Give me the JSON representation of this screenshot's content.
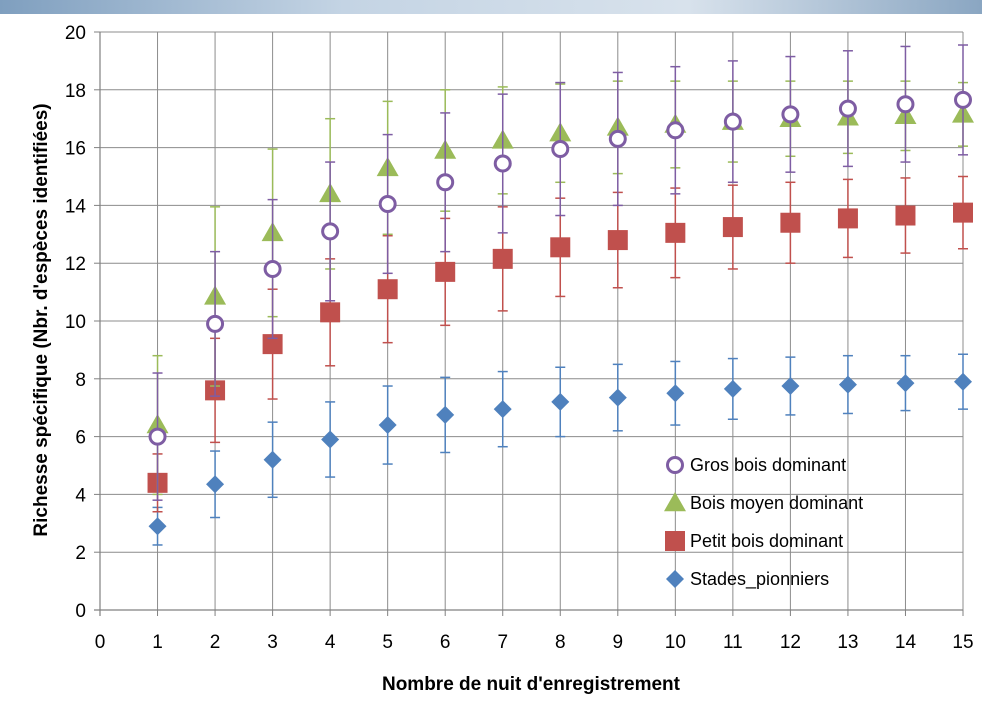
{
  "chart_data": {
    "type": "scatter",
    "title": "",
    "xlabel": "Nombre de nuit d'enregistrement",
    "ylabel": "Richesse spécifique (Nbr. d'espèces identifiées)",
    "xlim": [
      0,
      15
    ],
    "ylim": [
      0,
      20
    ],
    "x_ticks": [
      0,
      1,
      2,
      3,
      4,
      5,
      6,
      7,
      8,
      9,
      10,
      11,
      12,
      13,
      14,
      15
    ],
    "y_ticks": [
      0,
      2,
      4,
      6,
      8,
      10,
      12,
      14,
      16,
      18,
      20
    ],
    "grid": true,
    "legend_position": "bottom-right",
    "x": [
      1,
      2,
      3,
      4,
      5,
      6,
      7,
      8,
      9,
      10,
      11,
      12,
      13,
      14,
      15
    ],
    "series": [
      {
        "name": "Gros bois dominant",
        "marker": "open-circle",
        "color": "#7E5DA3",
        "values": [
          6.0,
          9.9,
          11.8,
          13.1,
          14.05,
          14.8,
          15.45,
          15.95,
          16.3,
          16.6,
          16.9,
          17.15,
          17.35,
          17.5,
          17.65
        ],
        "err": [
          2.2,
          2.5,
          2.4,
          2.4,
          2.4,
          2.4,
          2.4,
          2.3,
          2.3,
          2.2,
          2.1,
          2.0,
          2.0,
          2.0,
          1.9
        ]
      },
      {
        "name": "Bois moyen dominant",
        "marker": "triangle",
        "color": "#9BBB59",
        "values": [
          6.4,
          10.85,
          13.05,
          14.4,
          15.3,
          15.9,
          16.25,
          16.5,
          16.7,
          16.8,
          16.9,
          17.0,
          17.05,
          17.1,
          17.15
        ],
        "err": [
          2.4,
          3.1,
          2.9,
          2.6,
          2.3,
          2.1,
          1.85,
          1.7,
          1.6,
          1.5,
          1.4,
          1.3,
          1.25,
          1.2,
          1.1
        ]
      },
      {
        "name": "Petit bois dominant",
        "marker": "square",
        "color": "#C0504D",
        "values": [
          4.4,
          7.6,
          9.2,
          10.3,
          11.1,
          11.7,
          12.15,
          12.55,
          12.8,
          13.05,
          13.25,
          13.4,
          13.55,
          13.65,
          13.75
        ],
        "err": [
          1.0,
          1.8,
          1.9,
          1.85,
          1.85,
          1.85,
          1.8,
          1.7,
          1.65,
          1.55,
          1.45,
          1.4,
          1.35,
          1.3,
          1.25
        ]
      },
      {
        "name": "Stades_pionniers",
        "marker": "diamond",
        "color": "#4F81BD",
        "values": [
          2.9,
          4.35,
          5.2,
          5.9,
          6.4,
          6.75,
          6.95,
          7.2,
          7.35,
          7.5,
          7.65,
          7.75,
          7.8,
          7.85,
          7.9
        ],
        "err": [
          0.65,
          1.15,
          1.3,
          1.3,
          1.35,
          1.3,
          1.3,
          1.2,
          1.15,
          1.1,
          1.05,
          1.0,
          1.0,
          0.95,
          0.95
        ]
      }
    ]
  }
}
